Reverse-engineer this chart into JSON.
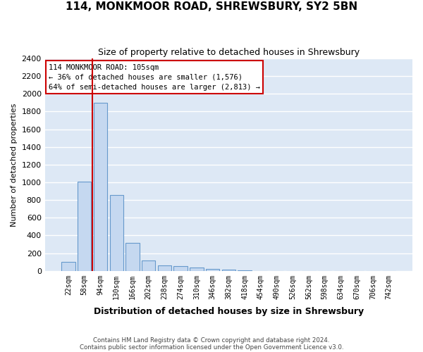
{
  "title": "114, MONKMOOR ROAD, SHREWSBURY, SY2 5BN",
  "subtitle": "Size of property relative to detached houses in Shrewsbury",
  "xlabel": "Distribution of detached houses by size in Shrewsbury",
  "ylabel": "Number of detached properties",
  "footer_line1": "Contains HM Land Registry data © Crown copyright and database right 2024.",
  "footer_line2": "Contains public sector information licensed under the Open Government Licence v3.0.",
  "bin_labels": [
    "22sqm",
    "58sqm",
    "94sqm",
    "130sqm",
    "166sqm",
    "202sqm",
    "238sqm",
    "274sqm",
    "310sqm",
    "346sqm",
    "382sqm",
    "418sqm",
    "454sqm",
    "490sqm",
    "526sqm",
    "562sqm",
    "598sqm",
    "634sqm",
    "670sqm",
    "706sqm",
    "742sqm"
  ],
  "bar_values": [
    100,
    1010,
    1900,
    860,
    315,
    120,
    60,
    55,
    35,
    25,
    15,
    5,
    0,
    0,
    0,
    0,
    0,
    0,
    0,
    0,
    0
  ],
  "bar_color": "#c5d8f0",
  "bar_edgecolor": "#6699cc",
  "fig_bg_color": "#ffffff",
  "axes_bg_color": "#dde8f5",
  "grid_color": "#ffffff",
  "property_line_color": "#cc0000",
  "property_line_bin_index": 2,
  "annotation_line1": "114 MONKMOOR ROAD: 105sqm",
  "annotation_line2": "← 36% of detached houses are smaller (1,576)",
  "annotation_line3": "64% of semi-detached houses are larger (2,813) →",
  "annotation_box_edgecolor": "#cc0000",
  "ylim_max": 2400,
  "ytick_step": 200
}
